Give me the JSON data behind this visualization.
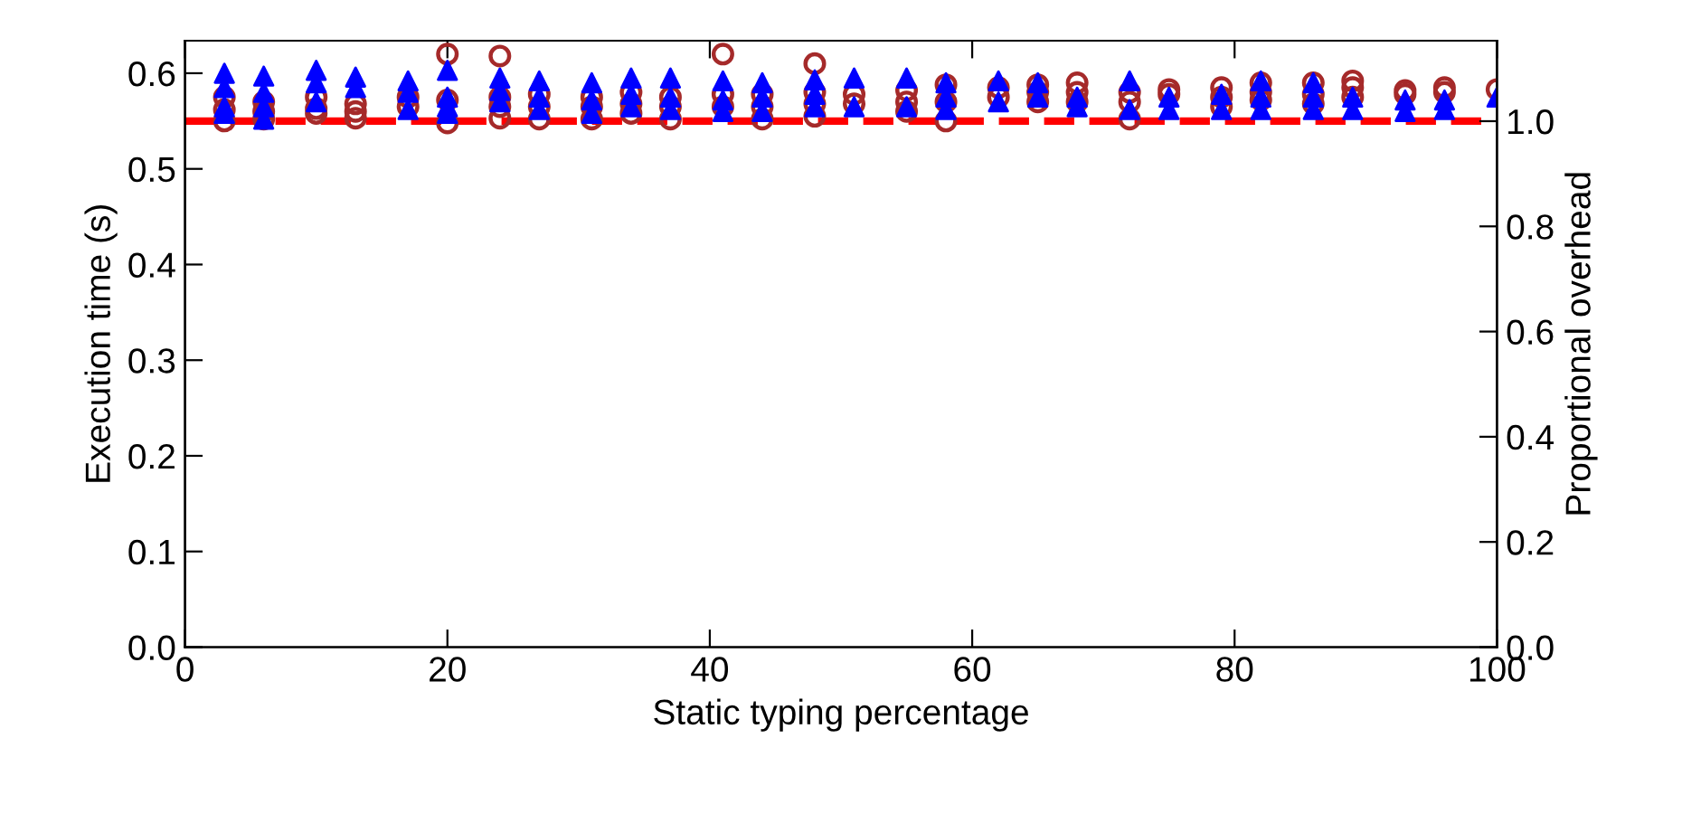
{
  "chart_data": {
    "type": "scatter",
    "xlabel": "Static typing percentage",
    "ylabel": "Execution time (s)",
    "y2label": "Proportional overhead",
    "xlim": [
      0,
      100
    ],
    "xticks": [
      0,
      20,
      40,
      60,
      80,
      100
    ],
    "ylim": [
      0,
      0.634
    ],
    "yticks": [
      {
        "value": 0,
        "label": "0.0"
      },
      0.1,
      0.2,
      0.3,
      0.4,
      0.5,
      0.6
    ],
    "y2lim": [
      0,
      1.153
    ],
    "y2ticks": [
      {
        "value": 0,
        "label": "0.0"
      },
      0.2,
      0.4,
      0.6,
      0.8,
      {
        "value": 1,
        "label": "1.0"
      }
    ],
    "grid": false,
    "legend": false,
    "ref_lines": [
      {
        "axis": "y",
        "value": 0.55,
        "color": "#ff0000",
        "line_style": "dashed"
      }
    ],
    "series": [
      {
        "marker": "circle",
        "color": "#a52a2a",
        "x": [
          3,
          3,
          3,
          6,
          6,
          6,
          10,
          10,
          10,
          13,
          13,
          13,
          17,
          17,
          20,
          20,
          20,
          24,
          24,
          24,
          24,
          27,
          27,
          27,
          31,
          31,
          31,
          34,
          34,
          34,
          37,
          37,
          37,
          41,
          41,
          41,
          44,
          44,
          44,
          48,
          48,
          48,
          48,
          51,
          51,
          55,
          55,
          55,
          58,
          58,
          58,
          62,
          62,
          65,
          65,
          65,
          68,
          68,
          68,
          72,
          72,
          72,
          75,
          75,
          79,
          79,
          79,
          82,
          82,
          82,
          86,
          86,
          86,
          89,
          89,
          89,
          93,
          93,
          96,
          96,
          100
        ],
        "values": [
          0.575,
          0.562,
          0.55,
          0.57,
          0.56,
          0.552,
          0.575,
          0.563,
          0.558,
          0.568,
          0.56,
          0.553,
          0.575,
          0.565,
          0.62,
          0.572,
          0.548,
          0.618,
          0.575,
          0.565,
          0.553,
          0.578,
          0.565,
          0.552,
          0.575,
          0.565,
          0.552,
          0.58,
          0.568,
          0.558,
          0.575,
          0.565,
          0.552,
          0.62,
          0.578,
          0.565,
          0.578,
          0.565,
          0.552,
          0.61,
          0.58,
          0.568,
          0.555,
          0.578,
          0.568,
          0.582,
          0.57,
          0.56,
          0.588,
          0.57,
          0.55,
          0.585,
          0.575,
          0.588,
          0.58,
          0.57,
          0.59,
          0.58,
          0.57,
          0.58,
          0.57,
          0.552,
          0.583,
          0.578,
          0.585,
          0.575,
          0.565,
          0.59,
          0.58,
          0.572,
          0.59,
          0.578,
          0.568,
          0.592,
          0.585,
          0.575,
          0.582,
          0.578,
          0.585,
          0.58,
          0.583
        ]
      },
      {
        "marker": "triangle",
        "color": "#0000ff",
        "x": [
          3,
          3,
          3,
          3,
          6,
          6,
          6,
          6,
          10,
          10,
          10,
          13,
          13,
          17,
          17,
          17,
          20,
          20,
          20,
          20,
          24,
          24,
          24,
          27,
          27,
          27,
          31,
          31,
          31,
          34,
          34,
          34,
          37,
          37,
          37,
          41,
          41,
          41,
          44,
          44,
          44,
          48,
          48,
          48,
          51,
          51,
          55,
          55,
          58,
          58,
          58,
          62,
          62,
          65,
          65,
          68,
          68,
          72,
          72,
          75,
          75,
          79,
          79,
          82,
          82,
          82,
          86,
          86,
          86,
          89,
          89,
          93,
          93,
          96,
          96,
          100
        ],
        "values": [
          0.6,
          0.585,
          0.565,
          0.558,
          0.597,
          0.58,
          0.565,
          0.552,
          0.603,
          0.59,
          0.57,
          0.596,
          0.585,
          0.592,
          0.58,
          0.562,
          0.603,
          0.575,
          0.565,
          0.558,
          0.595,
          0.582,
          0.57,
          0.592,
          0.575,
          0.562,
          0.59,
          0.572,
          0.558,
          0.595,
          0.578,
          0.565,
          0.595,
          0.575,
          0.562,
          0.592,
          0.572,
          0.56,
          0.59,
          0.575,
          0.56,
          0.593,
          0.578,
          0.565,
          0.595,
          0.565,
          0.595,
          0.565,
          0.59,
          0.575,
          0.562,
          0.592,
          0.57,
          0.59,
          0.575,
          0.575,
          0.565,
          0.592,
          0.562,
          0.575,
          0.562,
          0.578,
          0.562,
          0.592,
          0.575,
          0.562,
          0.59,
          0.575,
          0.562,
          0.575,
          0.562,
          0.572,
          0.56,
          0.572,
          0.562,
          0.575
        ]
      }
    ]
  }
}
